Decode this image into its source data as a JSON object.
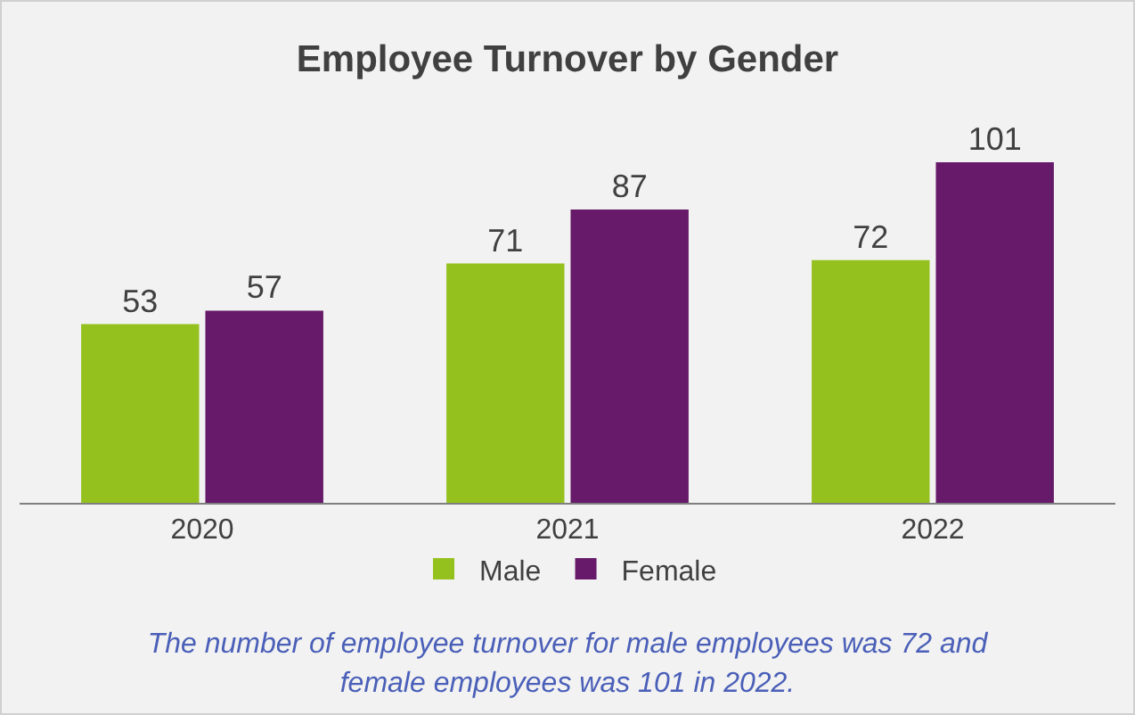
{
  "chart_data": {
    "type": "bar",
    "title": "Employee Turnover by Gender",
    "categories": [
      "2020",
      "2021",
      "2022"
    ],
    "series": [
      {
        "name": "Male",
        "color": "#95c11f",
        "values": [
          53,
          71,
          72
        ]
      },
      {
        "name": "Female",
        "color": "#671a69",
        "values": [
          57,
          87,
          101
        ]
      }
    ],
    "data_labels": true,
    "legend": "bottom",
    "annotations": [
      "The number of employee turnover for male employees was 72 and female employees was 101 in 2022."
    ]
  }
}
